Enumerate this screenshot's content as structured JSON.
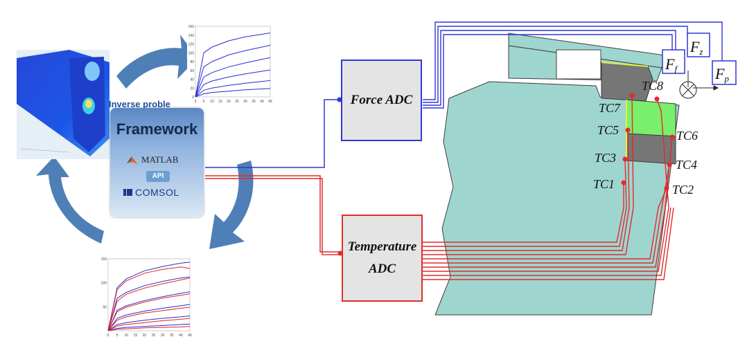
{
  "framework": {
    "inverse_label": "Inverse proble",
    "title": "Framework",
    "matlab_label": "MATLAB",
    "api_label": "API",
    "comsol_label": "COMSOL"
  },
  "adc": {
    "force_label": "Force ADC",
    "temp_line1": "Temperature",
    "temp_line2": "ADC"
  },
  "forces": {
    "f1_label": "F",
    "f1_sub": "f",
    "f2_label": "F",
    "f2_sub": "z",
    "f3_label": "F",
    "f3_sub": "p"
  },
  "thermocouples": [
    "TC1",
    "TC2",
    "TC3",
    "TC4",
    "TC5",
    "TC6",
    "TC7",
    "TC8"
  ],
  "colors": {
    "blue": "#2f36d8",
    "red": "#e32a2a",
    "arrow": "#4f7fb7",
    "workpiece": "#9ed5cf",
    "insert": "#7aef6e",
    "tool": "#767676"
  },
  "chart_data": [
    {
      "type": "line",
      "title": "",
      "xlabel": "",
      "ylabel": "",
      "x_ticks": [
        "0",
        "5",
        "10",
        "15",
        "20",
        "25",
        "30",
        "35",
        "40",
        "45"
      ],
      "y_ticks": [
        "0",
        "20",
        "40",
        "60",
        "80",
        "100",
        "120",
        "140",
        "160"
      ],
      "xlim": [
        0,
        45
      ],
      "ylim": [
        0,
        160
      ],
      "series": [
        {
          "values": [
            [
              0,
              0
            ],
            [
              5,
              100
            ],
            [
              10,
              113
            ],
            [
              20,
              127
            ],
            [
              30,
              136
            ],
            [
              40,
              142
            ],
            [
              45,
              145
            ]
          ]
        },
        {
          "values": [
            [
              0,
              0
            ],
            [
              5,
              68
            ],
            [
              10,
              80
            ],
            [
              20,
              95
            ],
            [
              30,
              105
            ],
            [
              40,
              113
            ],
            [
              45,
              117
            ]
          ]
        },
        {
          "values": [
            [
              0,
              0
            ],
            [
              5,
              45
            ],
            [
              10,
              55
            ],
            [
              20,
              68
            ],
            [
              30,
              77
            ],
            [
              40,
              85
            ],
            [
              45,
              89
            ]
          ]
        },
        {
          "values": [
            [
              0,
              0
            ],
            [
              5,
              28
            ],
            [
              10,
              36
            ],
            [
              20,
              45
            ],
            [
              30,
              52
            ],
            [
              40,
              58
            ],
            [
              45,
              61
            ]
          ]
        },
        {
          "values": [
            [
              0,
              0
            ],
            [
              5,
              15
            ],
            [
              10,
              20
            ],
            [
              20,
              26
            ],
            [
              30,
              31
            ],
            [
              40,
              35
            ],
            [
              45,
              37
            ]
          ]
        },
        {
          "values": [
            [
              0,
              0
            ],
            [
              5,
              7
            ],
            [
              10,
              10
            ],
            [
              20,
              13
            ],
            [
              30,
              16
            ],
            [
              40,
              18
            ],
            [
              45,
              19
            ]
          ]
        }
      ]
    },
    {
      "type": "line",
      "title": "",
      "xlabel": "",
      "ylabel": "",
      "x_ticks": [
        "0",
        "5",
        "10",
        "15",
        "20",
        "25",
        "30",
        "35",
        "40",
        "45"
      ],
      "y_ticks": [
        "50",
        "100",
        "150"
      ],
      "xlim": [
        0,
        45
      ],
      "ylim": [
        0,
        150
      ],
      "series": [
        {
          "color": "#2a2ad0",
          "values": [
            [
              0,
              0
            ],
            [
              5,
              90
            ],
            [
              10,
              108
            ],
            [
              20,
              125
            ],
            [
              30,
              134
            ],
            [
              40,
              141
            ],
            [
              45,
              143
            ]
          ]
        },
        {
          "color": "#e02020",
          "values": [
            [
              0,
              0
            ],
            [
              5,
              86
            ],
            [
              10,
              104
            ],
            [
              20,
              120
            ],
            [
              30,
              128
            ],
            [
              40,
              133
            ],
            [
              45,
              130
            ]
          ]
        },
        {
          "color": "#2a2ad0",
          "values": [
            [
              0,
              0
            ],
            [
              5,
              68
            ],
            [
              10,
              80
            ],
            [
              20,
              94
            ],
            [
              30,
              103
            ],
            [
              40,
              110
            ],
            [
              45,
              112
            ]
          ]
        },
        {
          "color": "#e02020",
          "values": [
            [
              0,
              0
            ],
            [
              5,
              62
            ],
            [
              10,
              76
            ],
            [
              20,
              89
            ],
            [
              30,
              98
            ],
            [
              40,
              106
            ],
            [
              45,
              110
            ]
          ]
        },
        {
          "color": "#2a2ad0",
          "values": [
            [
              0,
              0
            ],
            [
              5,
              43
            ],
            [
              10,
              52
            ],
            [
              20,
              63
            ],
            [
              30,
              71
            ],
            [
              40,
              78
            ],
            [
              45,
              81
            ]
          ]
        },
        {
          "color": "#e02020",
          "values": [
            [
              0,
              0
            ],
            [
              5,
              40
            ],
            [
              10,
              49
            ],
            [
              20,
              60
            ],
            [
              30,
              68
            ],
            [
              40,
              74
            ],
            [
              45,
              77
            ]
          ]
        },
        {
          "color": "#2a2ad0",
          "values": [
            [
              0,
              0
            ],
            [
              5,
              26
            ],
            [
              10,
              33
            ],
            [
              20,
              41
            ],
            [
              30,
              47
            ],
            [
              40,
              52
            ],
            [
              45,
              55
            ]
          ]
        },
        {
          "color": "#e02020",
          "values": [
            [
              0,
              0
            ],
            [
              5,
              22
            ],
            [
              10,
              29
            ],
            [
              20,
              37
            ],
            [
              30,
              42
            ],
            [
              40,
              47
            ],
            [
              45,
              49
            ]
          ]
        },
        {
          "color": "#2a2ad0",
          "values": [
            [
              0,
              0
            ],
            [
              5,
              13
            ],
            [
              10,
              17
            ],
            [
              20,
              22
            ],
            [
              30,
              26
            ],
            [
              40,
              29
            ],
            [
              45,
              31
            ]
          ]
        },
        {
          "color": "#e02020",
          "values": [
            [
              0,
              0
            ],
            [
              5,
              10
            ],
            [
              10,
              13
            ],
            [
              20,
              17
            ],
            [
              30,
              21
            ],
            [
              40,
              24
            ],
            [
              45,
              26
            ]
          ]
        },
        {
          "color": "#2a2ad0",
          "values": [
            [
              0,
              0
            ],
            [
              5,
              5
            ],
            [
              10,
              7
            ],
            [
              20,
              9
            ],
            [
              30,
              11
            ],
            [
              40,
              13
            ],
            [
              45,
              14
            ]
          ]
        },
        {
          "color": "#e02020",
          "values": [
            [
              0,
              0
            ],
            [
              5,
              3
            ],
            [
              10,
              4
            ],
            [
              20,
              6
            ],
            [
              30,
              7
            ],
            [
              40,
              8
            ],
            [
              45,
              9
            ]
          ]
        }
      ]
    }
  ]
}
